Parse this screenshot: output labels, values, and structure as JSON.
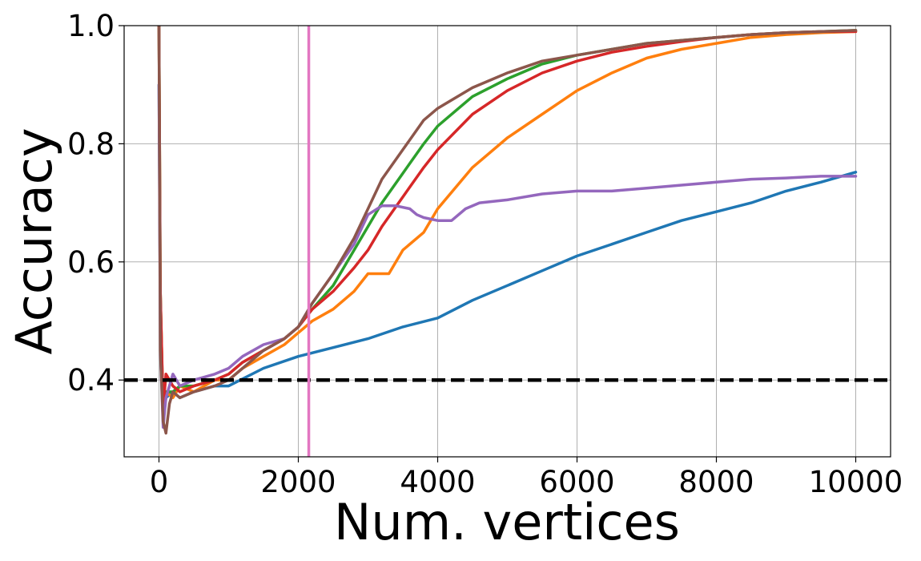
{
  "chart_data": {
    "type": "line",
    "xlabel": "Num. vertices",
    "ylabel": "Accuracy",
    "xlim": [
      -500,
      10500
    ],
    "ylim": [
      0.27,
      1.0
    ],
    "xticks": [
      0,
      2000,
      4000,
      6000,
      8000,
      10000
    ],
    "xtick_labels": [
      "0",
      "2000",
      "4000",
      "6000",
      "8000",
      "10000"
    ],
    "yticks": [
      0.4,
      0.6,
      0.8,
      1.0
    ],
    "ytick_labels": [
      "0.4",
      "0.6",
      "0.8",
      "1.0"
    ],
    "grid": true,
    "reference_lines": [
      {
        "orientation": "horizontal",
        "value": 0.4,
        "style": "dashed",
        "color": "#000000"
      },
      {
        "orientation": "vertical",
        "value": 2150,
        "style": "solid",
        "color": "#e377c2"
      }
    ],
    "series": [
      {
        "color": "#1f77b4",
        "x": [
          0,
          20,
          60,
          100,
          200,
          300,
          500,
          800,
          1000,
          1500,
          2000,
          2500,
          3000,
          3500,
          4000,
          4500,
          5000,
          5500,
          6000,
          6500,
          7000,
          7500,
          8000,
          8500,
          9000,
          9500,
          10000
        ],
        "y": [
          0.9,
          0.5,
          0.34,
          0.37,
          0.38,
          0.37,
          0.38,
          0.39,
          0.39,
          0.42,
          0.44,
          0.455,
          0.47,
          0.49,
          0.505,
          0.535,
          0.56,
          0.585,
          0.61,
          0.63,
          0.65,
          0.67,
          0.685,
          0.7,
          0.72,
          0.735,
          0.752
        ]
      },
      {
        "color": "#ff7f0e",
        "x": [
          0,
          20,
          60,
          100,
          200,
          300,
          500,
          800,
          1000,
          1200,
          1500,
          1800,
          2000,
          2200,
          2500,
          2800,
          3000,
          3300,
          3500,
          3800,
          4000,
          4500,
          5000,
          5500,
          6000,
          6500,
          7000,
          7500,
          8000,
          8500,
          9000,
          9500,
          10000
        ],
        "y": [
          1.0,
          0.55,
          0.34,
          0.38,
          0.37,
          0.39,
          0.38,
          0.4,
          0.4,
          0.42,
          0.44,
          0.46,
          0.48,
          0.5,
          0.52,
          0.55,
          0.58,
          0.58,
          0.62,
          0.65,
          0.69,
          0.76,
          0.81,
          0.85,
          0.89,
          0.92,
          0.945,
          0.96,
          0.97,
          0.98,
          0.985,
          0.988,
          0.99
        ]
      },
      {
        "color": "#2ca02c",
        "x": [
          0,
          20,
          60,
          100,
          200,
          300,
          500,
          800,
          1000,
          1200,
          1500,
          1800,
          2000,
          2200,
          2500,
          2800,
          3000,
          3200,
          3500,
          3800,
          4000,
          4500,
          5000,
          5500,
          6000,
          6500,
          7000,
          7500,
          8000,
          8500,
          9000,
          9500,
          10000
        ],
        "y": [
          1.0,
          0.55,
          0.34,
          0.38,
          0.38,
          0.39,
          0.39,
          0.4,
          0.41,
          0.43,
          0.45,
          0.47,
          0.49,
          0.52,
          0.56,
          0.62,
          0.66,
          0.7,
          0.75,
          0.8,
          0.83,
          0.88,
          0.91,
          0.935,
          0.95,
          0.96,
          0.97,
          0.975,
          0.98,
          0.985,
          0.988,
          0.99,
          0.992
        ]
      },
      {
        "color": "#d62728",
        "x": [
          0,
          20,
          60,
          100,
          200,
          300,
          500,
          800,
          1000,
          1200,
          1500,
          1800,
          2000,
          2200,
          2500,
          2800,
          3000,
          3200,
          3500,
          3800,
          4000,
          4500,
          5000,
          5500,
          6000,
          6500,
          7000,
          7500,
          8000,
          8500,
          9000,
          9500,
          10000
        ],
        "y": [
          1.0,
          0.55,
          0.35,
          0.41,
          0.39,
          0.38,
          0.39,
          0.4,
          0.41,
          0.43,
          0.45,
          0.47,
          0.49,
          0.52,
          0.55,
          0.59,
          0.62,
          0.66,
          0.71,
          0.76,
          0.79,
          0.85,
          0.89,
          0.92,
          0.94,
          0.955,
          0.965,
          0.973,
          0.98,
          0.985,
          0.988,
          0.99,
          0.99
        ]
      },
      {
        "color": "#9467bd",
        "x": [
          0,
          20,
          60,
          100,
          200,
          300,
          500,
          800,
          1000,
          1200,
          1500,
          1800,
          2000,
          2200,
          2500,
          2800,
          3000,
          3200,
          3400,
          3600,
          3700,
          3800,
          4000,
          4200,
          4400,
          4600,
          5000,
          5500,
          6000,
          6500,
          7000,
          7500,
          8000,
          8500,
          9000,
          9500,
          10000
        ],
        "y": [
          0.9,
          0.45,
          0.32,
          0.37,
          0.41,
          0.39,
          0.4,
          0.41,
          0.42,
          0.44,
          0.46,
          0.47,
          0.49,
          0.53,
          0.58,
          0.63,
          0.68,
          0.695,
          0.695,
          0.69,
          0.68,
          0.675,
          0.67,
          0.67,
          0.69,
          0.7,
          0.705,
          0.715,
          0.72,
          0.72,
          0.725,
          0.73,
          0.735,
          0.74,
          0.742,
          0.745,
          0.745
        ]
      },
      {
        "color": "#8c564b",
        "x": [
          0,
          20,
          60,
          100,
          150,
          200,
          300,
          500,
          800,
          1000,
          1200,
          1500,
          1800,
          2000,
          2200,
          2500,
          2800,
          3000,
          3200,
          3500,
          3800,
          4000,
          4500,
          5000,
          5500,
          6000,
          6500,
          7000,
          7500,
          8000,
          8500,
          9000,
          9500,
          10000
        ],
        "y": [
          1.0,
          0.45,
          0.33,
          0.31,
          0.36,
          0.38,
          0.37,
          0.38,
          0.39,
          0.4,
          0.42,
          0.45,
          0.47,
          0.49,
          0.53,
          0.58,
          0.64,
          0.69,
          0.74,
          0.79,
          0.84,
          0.86,
          0.895,
          0.92,
          0.94,
          0.95,
          0.96,
          0.97,
          0.975,
          0.98,
          0.985,
          0.988,
          0.99,
          0.992
        ]
      }
    ]
  }
}
